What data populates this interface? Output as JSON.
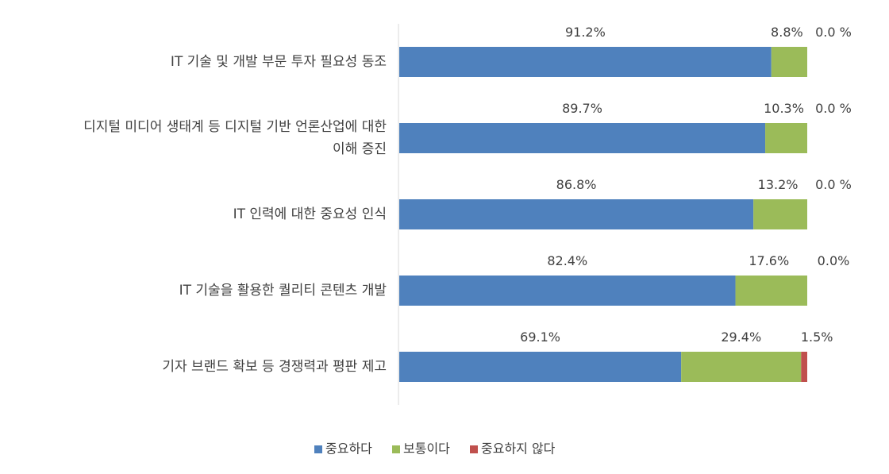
{
  "chart_data": {
    "type": "bar",
    "orientation": "horizontal",
    "stacked": "percent",
    "grid": false,
    "legend_position": "bottom",
    "categories": [
      [
        "IT 기술 및 개발 부문 투자 필요성 동조"
      ],
      [
        "디지털 미디어 생태계 등 디지털 기반 언론산업에 대한",
        "이해 증진"
      ],
      [
        "IT 인력에 대한 중요성 인식"
      ],
      [
        "IT 기술을 활용한 퀄리티 콘텐츠 개발"
      ],
      [
        "기자 브랜드 확보 등 경쟁력과 평판 제고"
      ]
    ],
    "series": [
      {
        "name": "중요하다",
        "color": "#4f81bd",
        "values": [
          91.2,
          89.7,
          86.8,
          82.4,
          69.1
        ],
        "labels": [
          "91.2%",
          "89.7%",
          "86.8%",
          "82.4%",
          "69.1%"
        ]
      },
      {
        "name": "보통이다",
        "color": "#9bbb59",
        "values": [
          8.8,
          10.3,
          13.2,
          17.6,
          29.4
        ],
        "labels": [
          "8.8%",
          "10.3%",
          "13.2%",
          "17.6%",
          "29.4%"
        ]
      },
      {
        "name": "중요하지 않다",
        "color": "#c0504d",
        "values": [
          0.0,
          0.0,
          0.0,
          0.0,
          1.5
        ],
        "labels": [
          "0.0 %",
          "0.0 %",
          "0.0 %",
          "0.0%",
          "1.5%"
        ]
      }
    ],
    "xlim": [
      0,
      100
    ]
  }
}
